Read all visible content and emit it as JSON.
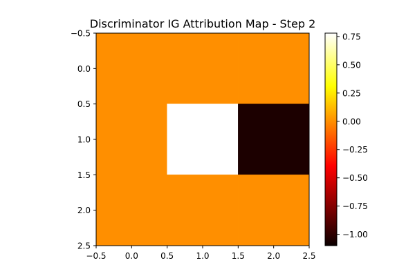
{
  "chart_data": {
    "type": "heatmap",
    "title": "Discriminator IG Attribution Map - Step 2",
    "colormap": "hot",
    "x_ticks": [
      "−0.5",
      "0.0",
      "0.5",
      "1.0",
      "1.5",
      "2.0",
      "2.5"
    ],
    "y_ticks": [
      "−0.5",
      "0.0",
      "0.5",
      "1.0",
      "1.5",
      "2.0",
      "2.5"
    ],
    "xlim": [
      -0.5,
      2.5
    ],
    "ylim": [
      2.5,
      -0.5
    ],
    "values": [
      [
        0.0,
        0.0,
        0.0
      ],
      [
        0.0,
        0.78,
        -1.1
      ],
      [
        0.0,
        0.0,
        0.0
      ]
    ],
    "colorbar": {
      "range": [
        -1.1,
        0.78
      ],
      "ticks": [
        0.75,
        0.5,
        0.25,
        0.0,
        -0.25,
        -0.5,
        -0.75,
        -1.0
      ],
      "tick_labels": [
        "0.75",
        "0.50",
        "0.25",
        "0.00",
        "−0.25",
        "−0.50",
        "−0.75",
        "−1.00"
      ]
    }
  }
}
